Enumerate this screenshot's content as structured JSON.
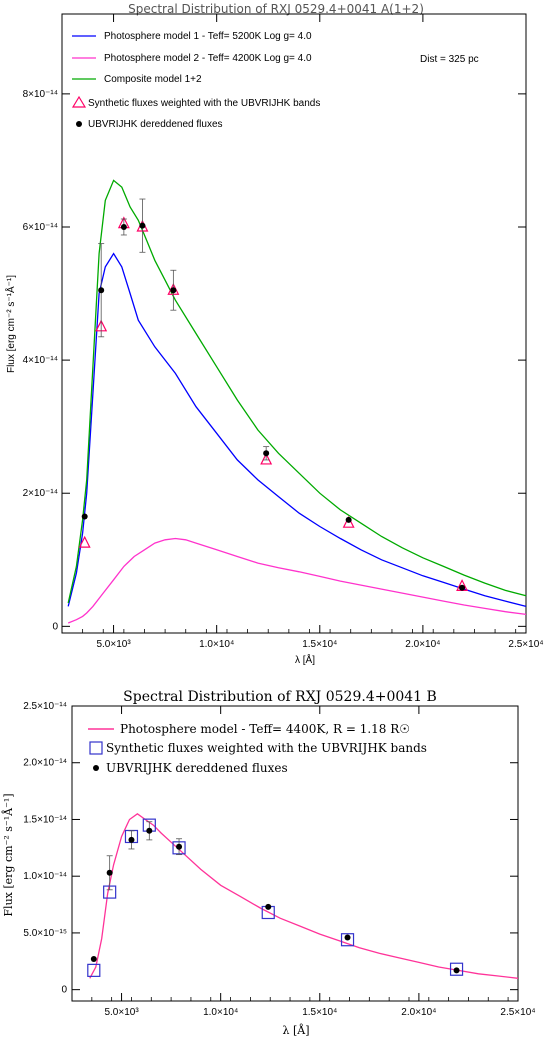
{
  "chart_data": [
    {
      "type": "line",
      "title": "Spectral Distribution of RXJ 0529.4+0041 A(1+2)",
      "xlabel": "λ [Å]",
      "ylabel": "Flux [erg cm⁻² s⁻¹Å⁻¹]",
      "xlim": [
        2500,
        25000
      ],
      "ylim": [
        -1e-15,
        9.2e-14
      ],
      "x_ticks": [
        5000,
        10000,
        15000,
        20000,
        25000
      ],
      "x_tick_labels": [
        "5.0×10³",
        "1.0×10⁴",
        "1.5×10⁴",
        "2.0×10⁴",
        "2.5×10⁴"
      ],
      "y_ticks": [
        0,
        2e-14,
        4e-14,
        6e-14,
        8e-14
      ],
      "y_tick_labels": [
        "0",
        "2×10⁻¹⁴",
        "4×10⁻¹⁴",
        "6×10⁻¹⁴",
        "8×10⁻¹⁴"
      ],
      "annotation": "Dist = 325 pc",
      "legend_position": "top-left",
      "series": [
        {
          "name": "Photosphere model 1 - Teff= 5200K Log g= 4.0",
          "color": "#0000ff",
          "x": [
            2800,
            3200,
            3500,
            3700,
            4000,
            4300,
            4600,
            5000,
            5400,
            5800,
            6200,
            7000,
            8000,
            9000,
            10000,
            11000,
            12000,
            13000,
            14000,
            15000,
            16000,
            17000,
            18000,
            19000,
            20000,
            21000,
            22000,
            23000,
            24000,
            25000
          ],
          "y": [
            3e-15,
            8e-15,
            1.4e-14,
            2e-14,
            3.5e-14,
            5e-14,
            5.4e-14,
            5.6e-14,
            5.4e-14,
            5e-14,
            4.6e-14,
            4.2e-14,
            3.8e-14,
            3.3e-14,
            2.9e-14,
            2.5e-14,
            2.2e-14,
            1.95e-14,
            1.7e-14,
            1.5e-14,
            1.32e-14,
            1.15e-14,
            1e-14,
            8.8e-15,
            7.6e-15,
            6.6e-15,
            5.6e-15,
            4.6e-15,
            3.8e-15,
            3e-15
          ]
        },
        {
          "name": "Photosphere model 2 - Teff= 4200K Log g= 4.0",
          "color": "#ff33cc",
          "x": [
            2800,
            3200,
            3500,
            3700,
            4000,
            4500,
            5000,
            5500,
            6000,
            6500,
            7000,
            7500,
            8000,
            8500,
            9000,
            10000,
            11000,
            12000,
            13000,
            14000,
            15000,
            16000,
            17000,
            18000,
            19000,
            20000,
            21000,
            22000,
            23000,
            24000,
            25000
          ],
          "y": [
            5e-16,
            1e-15,
            1.5e-15,
            2e-15,
            3e-15,
            5e-15,
            7e-15,
            9e-15,
            1.05e-14,
            1.15e-14,
            1.25e-14,
            1.3e-14,
            1.32e-14,
            1.3e-14,
            1.25e-14,
            1.15e-14,
            1.05e-14,
            9.5e-15,
            8.8e-15,
            8.2e-15,
            7.5e-15,
            6.8e-15,
            6.2e-15,
            5.6e-15,
            5e-15,
            4.4e-15,
            3.8e-15,
            3.2e-15,
            2.7e-15,
            2.2e-15,
            1.8e-15
          ]
        },
        {
          "name": "Composite model 1+2",
          "color": "#00aa00",
          "x": [
            2800,
            3200,
            3500,
            3700,
            4000,
            4300,
            4600,
            5000,
            5400,
            5800,
            6200,
            6600,
            7000,
            7500,
            8000,
            9000,
            10000,
            11000,
            12000,
            13000,
            14000,
            15000,
            16000,
            17000,
            18000,
            19000,
            20000,
            21000,
            22000,
            23000,
            24000,
            25000
          ],
          "y": [
            3.5e-15,
            9e-15,
            1.6e-14,
            2.2e-14,
            3.9e-14,
            5.6e-14,
            6.4e-14,
            6.7e-14,
            6.6e-14,
            6.3e-14,
            6.1e-14,
            5.8e-14,
            5.5e-14,
            5.2e-14,
            4.9e-14,
            4.4e-14,
            3.9e-14,
            3.4e-14,
            2.95e-14,
            2.6e-14,
            2.3e-14,
            2e-14,
            1.75e-14,
            1.55e-14,
            1.35e-14,
            1.18e-14,
            1.03e-14,
            9e-15,
            7.7e-15,
            6.5e-15,
            5.4e-15,
            4.6e-15
          ]
        }
      ],
      "triangles": {
        "name": "Synthetic fluxes weighted with the UBVRIJHK bands",
        "color": "#ff0066",
        "x": [
          3600,
          4400,
          5500,
          6400,
          7900,
          12400,
          16400,
          21900
        ],
        "y": [
          1.25e-14,
          4.5e-14,
          6.05e-14,
          6e-14,
          5.05e-14,
          2.5e-14,
          1.55e-14,
          6e-15
        ]
      },
      "dots": {
        "name": "UBVRIJHK dereddened fluxes",
        "color": "#000000",
        "x": [
          3600,
          4400,
          5500,
          6400,
          7900,
          12400,
          16400,
          21900
        ],
        "y": [
          1.65e-14,
          5.05e-14,
          6e-14,
          6.02e-14,
          5.05e-14,
          2.6e-14,
          1.6e-14,
          5.8e-15
        ],
        "err": [
          0,
          7e-15,
          1.2e-15,
          4e-15,
          3e-15,
          1e-15,
          0,
          0
        ]
      }
    },
    {
      "type": "line",
      "title": "Spectral Distribution of RXJ 0529.4+0041 B",
      "xlabel": "λ [Å]",
      "ylabel": "Flux [erg cm⁻² s⁻¹Å⁻¹]",
      "xlim": [
        2500,
        25000
      ],
      "ylim": [
        -1e-15,
        2.5e-14
      ],
      "x_ticks": [
        5000,
        10000,
        15000,
        20000,
        25000
      ],
      "x_tick_labels": [
        "5.0×10³",
        "1.0×10⁴",
        "1.5×10⁴",
        "2.0×10⁴",
        "2.5×10⁴"
      ],
      "y_ticks": [
        0,
        5e-15,
        1e-14,
        1.5e-14,
        2e-14,
        2.5e-14
      ],
      "y_tick_labels": [
        "0",
        "5.0×10⁻¹⁵",
        "1.0×10⁻¹⁴",
        "1.5×10⁻¹⁴",
        "2.0×10⁻¹⁴",
        "2.5×10⁻¹⁴"
      ],
      "legend_position": "top-left",
      "series": [
        {
          "name": "Photosphere model - Teff= 4400K, R = 1.18 R☉",
          "color": "#ff3399",
          "x": [
            3400,
            3700,
            4000,
            4300,
            4600,
            5000,
            5400,
            5800,
            6200,
            6600,
            7000,
            7500,
            8000,
            9000,
            10000,
            11000,
            12000,
            13000,
            14000,
            15000,
            16000,
            17000,
            18000,
            19000,
            20000,
            21000,
            22000,
            23000,
            24000,
            25000
          ],
          "y": [
            1e-15,
            2e-15,
            4.5e-15,
            8.5e-15,
            1.1e-14,
            1.35e-14,
            1.5e-14,
            1.55e-14,
            1.5e-14,
            1.45e-14,
            1.38e-14,
            1.3e-14,
            1.22e-14,
            1.06e-14,
            9.2e-15,
            8.2e-15,
            7.2e-15,
            6.3e-15,
            5.6e-15,
            4.9e-15,
            4.3e-15,
            3.7e-15,
            3.2e-15,
            2.8e-15,
            2.4e-15,
            2e-15,
            1.7e-15,
            1.4e-15,
            1.2e-15,
            1e-15
          ]
        }
      ],
      "squares": {
        "name": "Synthetic fluxes weighted with the UBVRIJHK bands",
        "color": "#3333cc",
        "x": [
          3600,
          4400,
          5500,
          6400,
          7900,
          12400,
          16400,
          21900
        ],
        "y": [
          1.7e-15,
          8.6e-15,
          1.35e-14,
          1.45e-14,
          1.25e-14,
          6.8e-15,
          4.4e-15,
          1.8e-15
        ]
      },
      "dots": {
        "name": "UBVRIJHK dereddened fluxes",
        "color": "#000000",
        "x": [
          3600,
          4400,
          5500,
          6400,
          7900,
          12400,
          16400,
          21900
        ],
        "y": [
          2.7e-15,
          1.03e-14,
          1.32e-14,
          1.4e-14,
          1.26e-14,
          7.3e-15,
          4.6e-15,
          1.7e-15
        ],
        "err": [
          0,
          1.5e-15,
          8e-16,
          8e-16,
          7e-16,
          0,
          0,
          0
        ]
      }
    }
  ]
}
